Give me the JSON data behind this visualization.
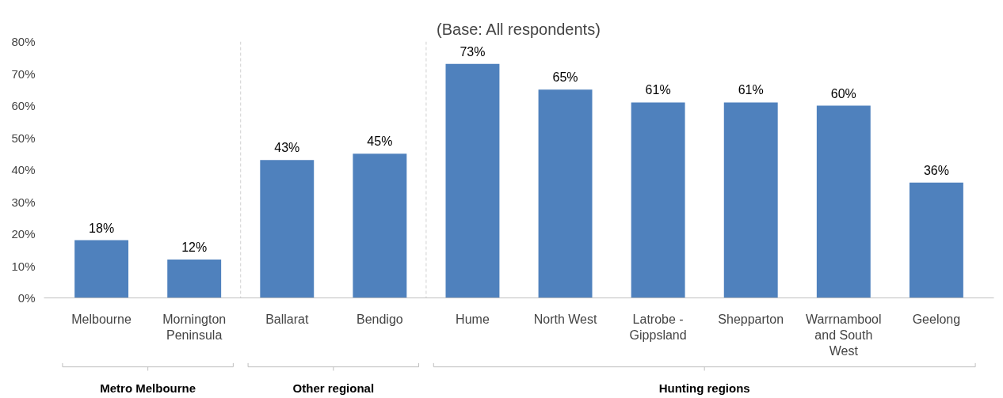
{
  "chart_data": {
    "type": "bar",
    "title": "(Base: All respondents)",
    "categories": [
      "Melbourne",
      "Mornington Peninsula",
      "Ballarat",
      "Bendigo",
      "Hume",
      "North West",
      "Latrobe - Gippsland",
      "Shepparton",
      "Warrnambool and South West",
      "Geelong"
    ],
    "values": [
      18,
      12,
      43,
      45,
      73,
      65,
      61,
      61,
      60,
      36
    ],
    "color": "#4f81bd",
    "ylim": [
      0,
      80
    ],
    "yticks": [
      {
        "value": 0,
        "label": "0%"
      },
      {
        "value": 10,
        "label": "10%"
      },
      {
        "value": 20,
        "label": "20%"
      },
      {
        "value": 30,
        "label": "30%"
      },
      {
        "value": 40,
        "label": "40%"
      },
      {
        "value": 50,
        "label": "50%"
      },
      {
        "value": 60,
        "label": "60%"
      },
      {
        "value": 70,
        "label": "70%"
      },
      {
        "value": 80,
        "label": "80%"
      }
    ],
    "value_labels": [
      "18%",
      "12%",
      "43%",
      "45%",
      "73%",
      "65%",
      "61%",
      "61%",
      "60%",
      "36%"
    ],
    "grid": false,
    "annotations": [
      "Metro Melbourne",
      "Other regional",
      "Hunting regions"
    ]
  }
}
